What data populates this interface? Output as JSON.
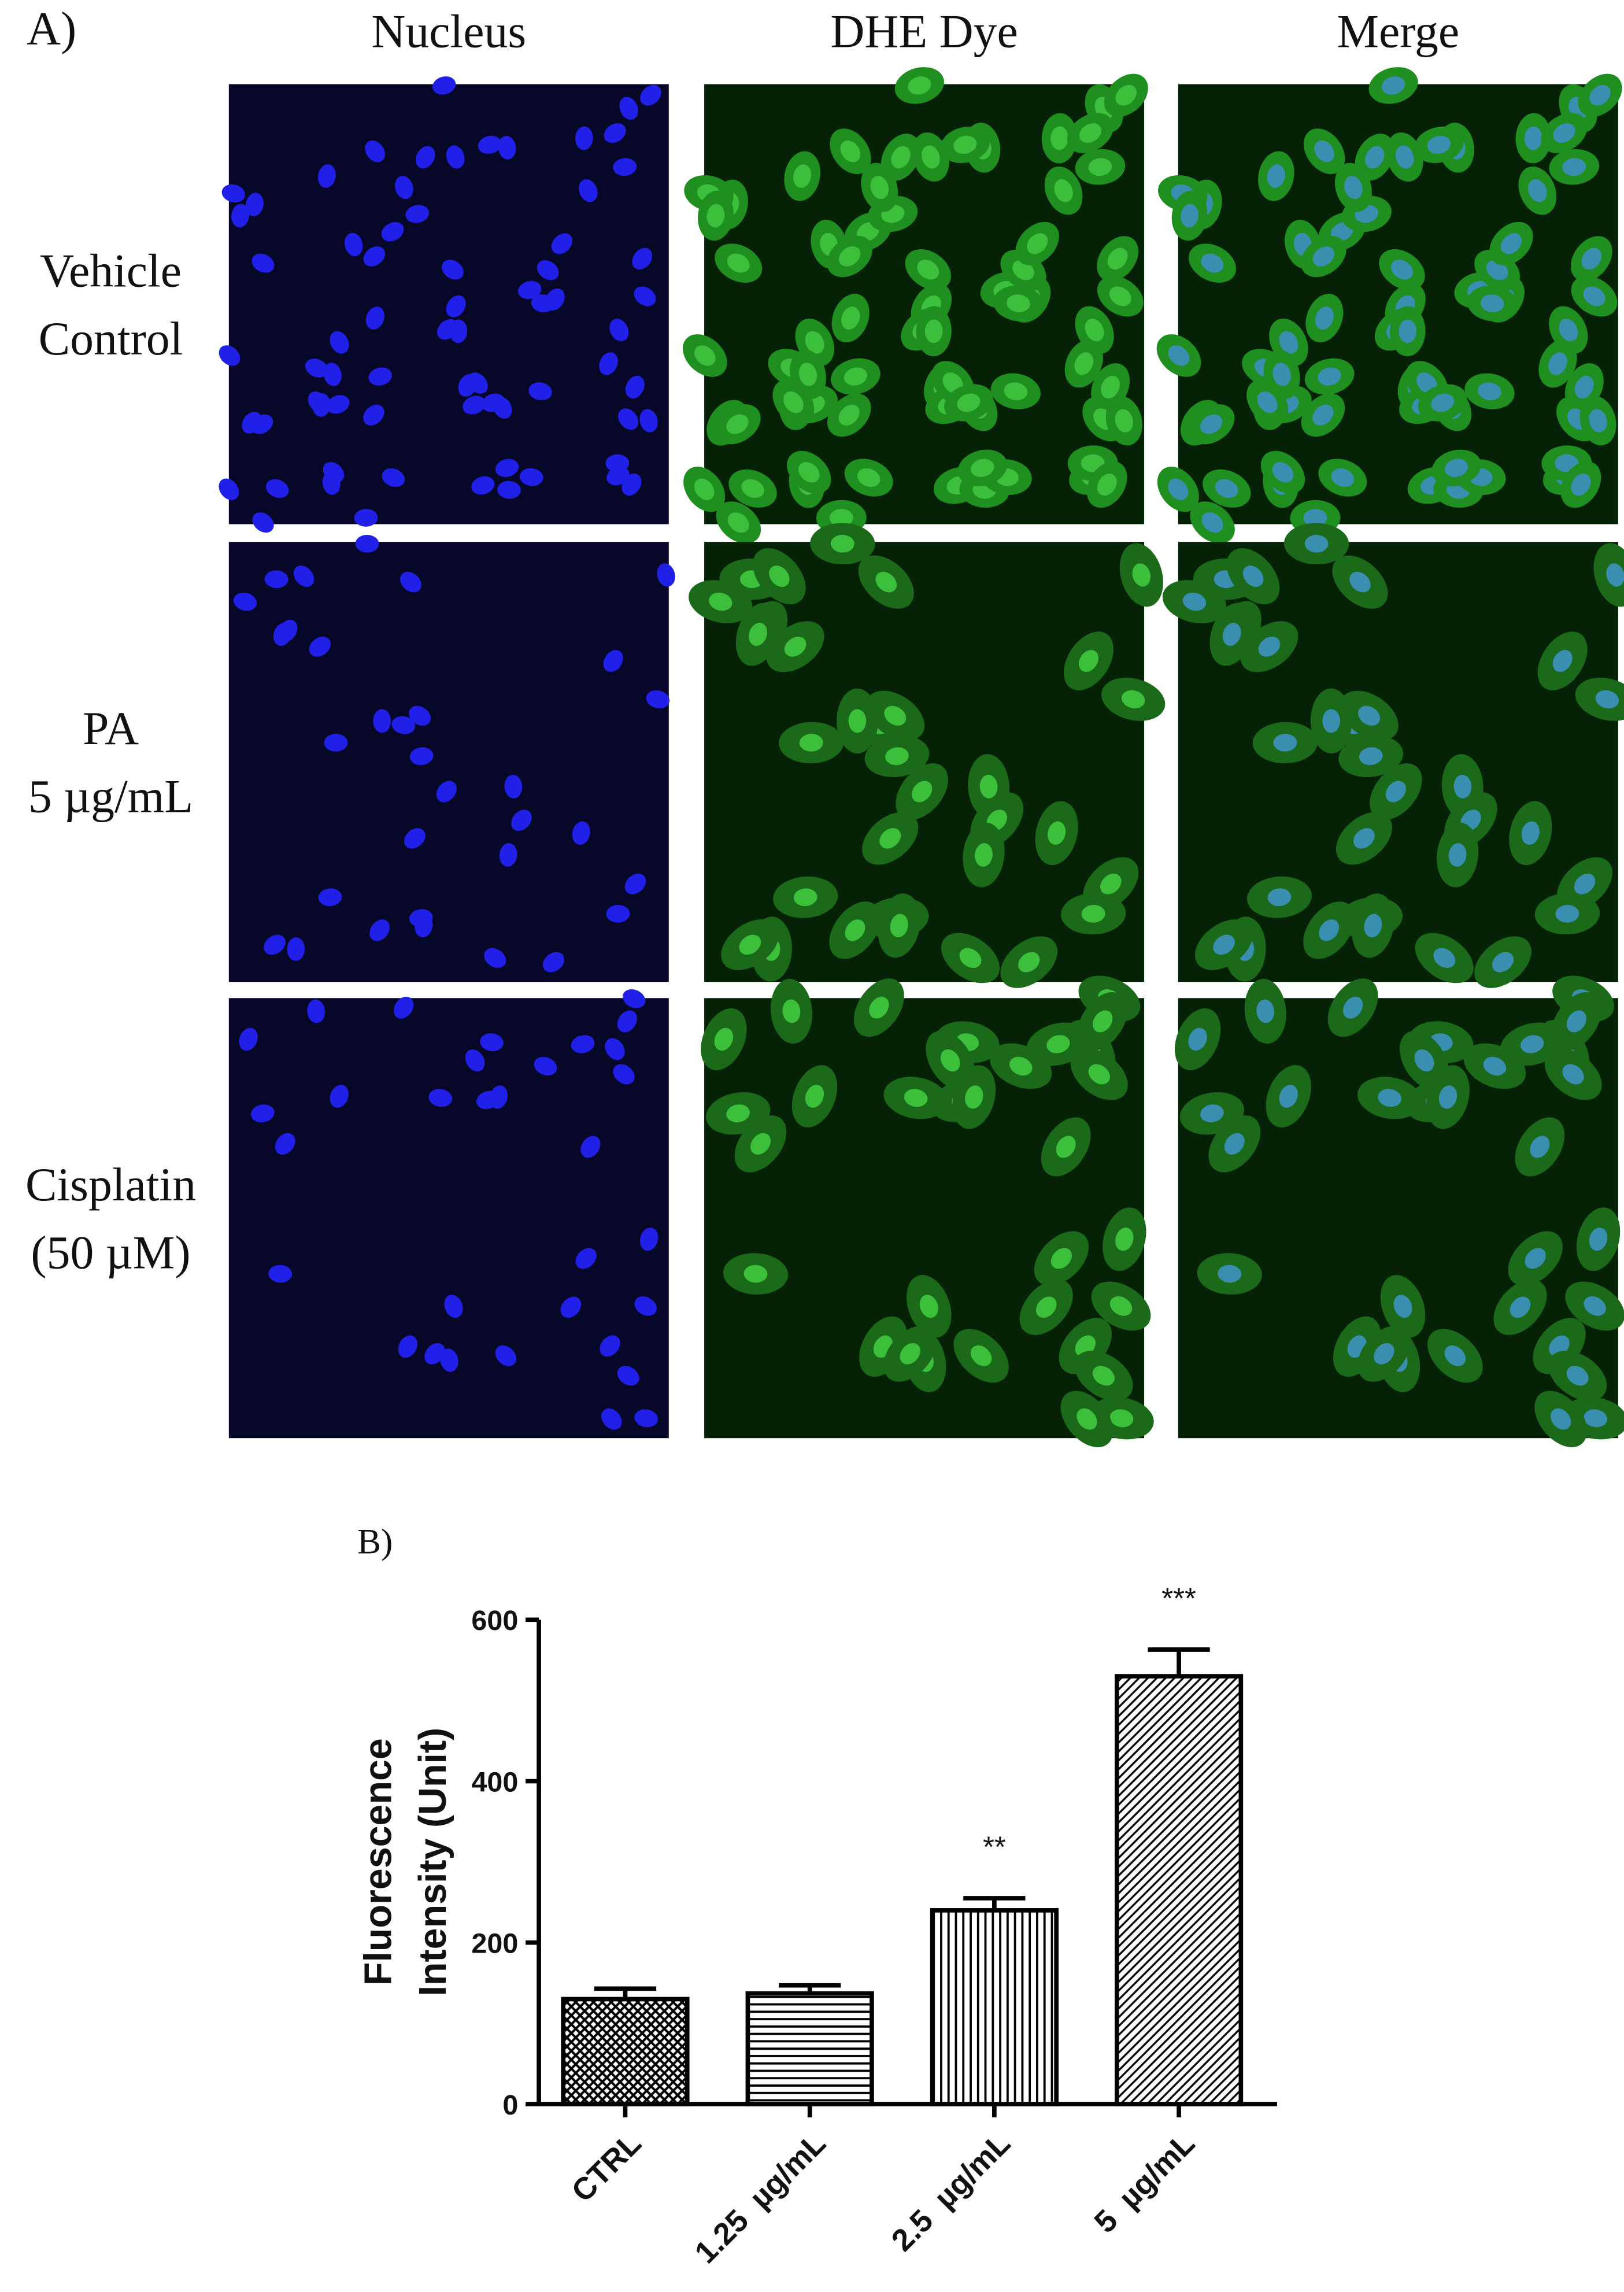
{
  "panel_a": {
    "label": "A)",
    "columns": [
      "Nucleus",
      "DHE Dye",
      "Merge"
    ],
    "rows": [
      [
        "Vehicle",
        "Control"
      ],
      [
        "PA",
        "5 µg/mL"
      ],
      [
        "Cisplatin",
        "(50 µM)"
      ]
    ]
  },
  "chart_data": {
    "type": "bar",
    "panel_label": "B)",
    "ylabel": [
      "Fluorescence",
      "Intensity (Unit)"
    ],
    "categories": [
      "CTRL",
      "1.25  µg/mL",
      "2.5  µg/mL",
      "5  µg/mL"
    ],
    "values": [
      130,
      137,
      240,
      530
    ],
    "errors": [
      13,
      10,
      15,
      33
    ],
    "patterns": [
      "crosshatch",
      "horizontal",
      "vertical",
      "diagonal"
    ],
    "color": "#000000",
    "annotations": [
      {
        "category": "2.5  µg/mL",
        "text": "**"
      },
      {
        "category": "5  µg/mL",
        "text": "***"
      }
    ],
    "ylim": [
      0,
      600
    ],
    "yticks": [
      0,
      200,
      400,
      600
    ]
  }
}
